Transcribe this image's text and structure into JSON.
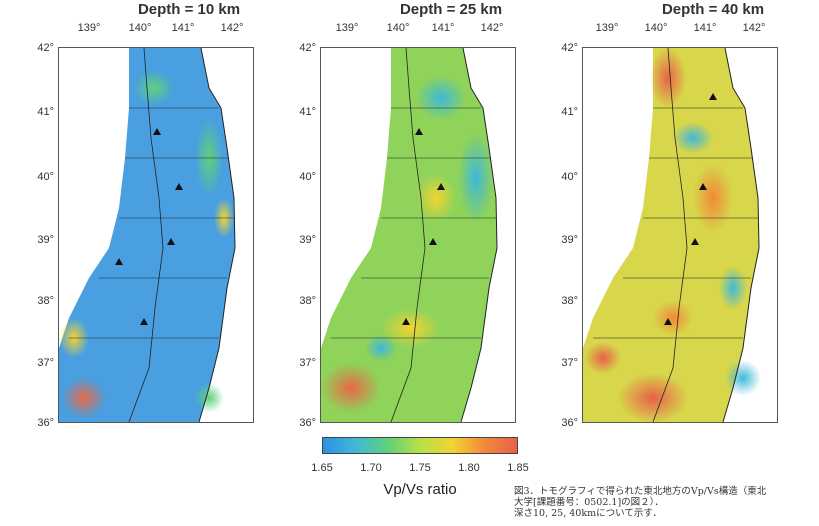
{
  "panels": [
    {
      "title": "Depth = 10 km",
      "lon_ticks": [
        "139°",
        "140°",
        "141°",
        "142°"
      ],
      "lat_ticks": [
        "42°",
        "41°",
        "40°",
        "39°",
        "38°",
        "37°",
        "36°"
      ]
    },
    {
      "title": "Depth = 25 km",
      "lon_ticks": [
        "139°",
        "140°",
        "141°",
        "142°"
      ],
      "lat_ticks": [
        "42°",
        "41°",
        "40°",
        "39°",
        "38°",
        "37°",
        "36°"
      ]
    },
    {
      "title": "Depth = 40 km",
      "lon_ticks": [
        "139°",
        "140°",
        "141°",
        "142°"
      ],
      "lat_ticks": [
        "42°",
        "41°",
        "40°",
        "39°",
        "38°",
        "37°",
        "36°"
      ]
    }
  ],
  "colorbar": {
    "title": "Vp/Vs ratio",
    "ticks": [
      "1.65",
      "1.70",
      "1.75",
      "1.80",
      "1.85"
    ],
    "colors": [
      "#2f8fe6",
      "#3fb8d8",
      "#5fd07a",
      "#b8e04a",
      "#f2d431",
      "#f08a3a",
      "#e8604a"
    ]
  },
  "caption": {
    "lines": [
      "図3．トモグラフィで得られた東北地方のVp/Vs構造（東北",
      "大学[課題番号：0502.1]の図２）．",
      "深さ10, 25, 40kmについて示す．"
    ]
  },
  "map_colors": {
    "base_10km": "#4a9fe0",
    "base_25km": "#8fd35a",
    "base_40km": "#d8d64a",
    "outline": "#222222"
  }
}
